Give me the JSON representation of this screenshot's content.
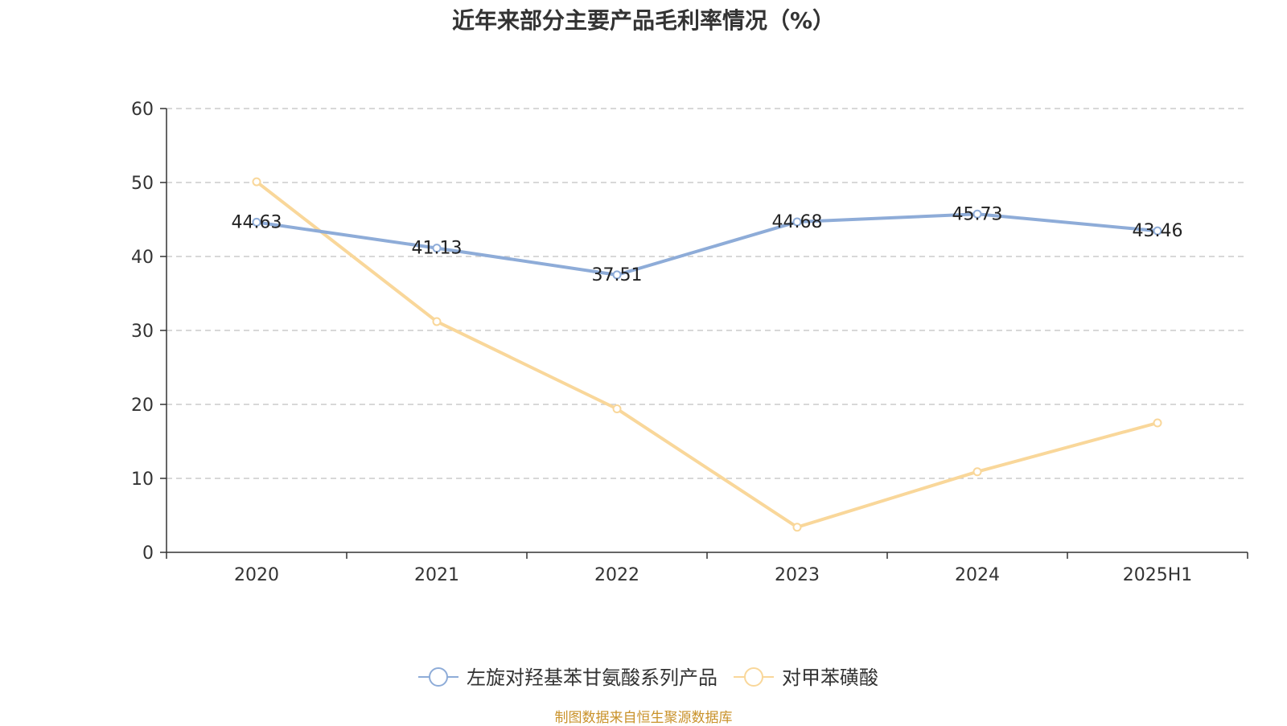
{
  "title": "近年来部分主要产品毛利率情况（%）",
  "source": "制图数据来自恒生聚源数据库",
  "chart_data": {
    "type": "line",
    "title": "近年来部分主要产品毛利率情况（%）",
    "categories": [
      "2020",
      "2021",
      "2022",
      "2023",
      "2024",
      "2025H1"
    ],
    "ylim": [
      0,
      60
    ],
    "yticks": [
      0,
      10,
      20,
      30,
      40,
      50,
      60
    ],
    "grid": true,
    "legend_position": "bottom",
    "series": [
      {
        "name": "左旋对羟基苯甘氨酸系列产品",
        "color": "#8eacd8",
        "values": [
          44.63,
          41.13,
          37.51,
          44.68,
          45.73,
          43.46
        ],
        "labels": [
          "44.63",
          "41.13",
          "37.51",
          "44.68",
          "45.73",
          "43.46"
        ]
      },
      {
        "name": "对甲苯磺酸",
        "color": "#f9d79a",
        "values": [
          50.1,
          31.2,
          19.4,
          3.4,
          10.9,
          17.5
        ]
      }
    ]
  }
}
